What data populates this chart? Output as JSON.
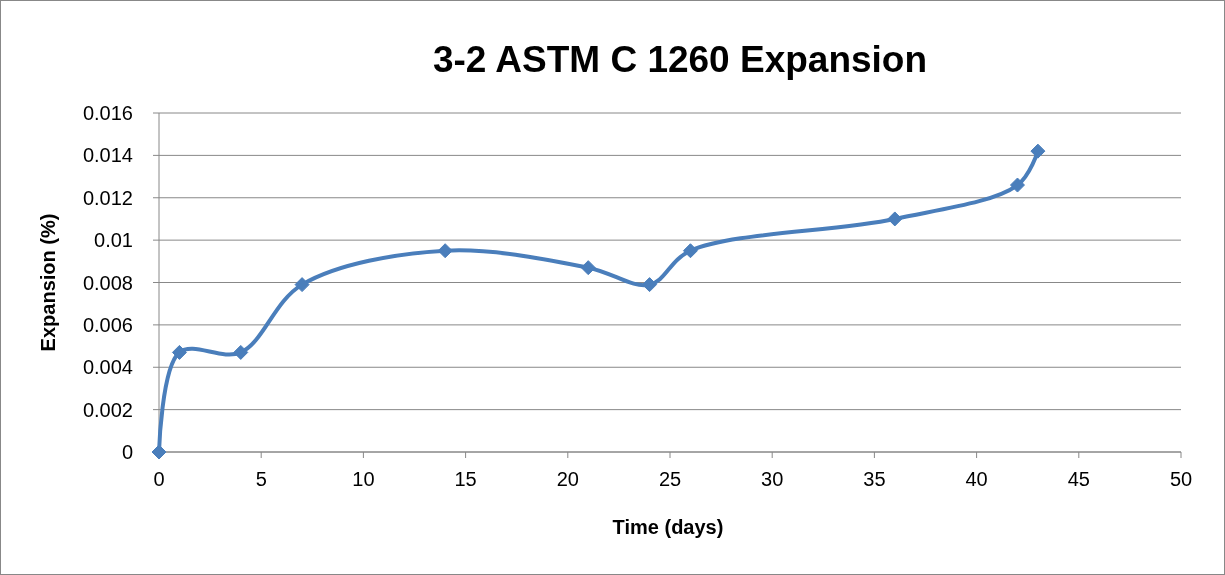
{
  "chart_data": {
    "type": "line",
    "title": "3-2 ASTM C 1260 Expansion",
    "xlabel": "Time (days)",
    "ylabel": "Expansion (%)",
    "x": [
      0,
      1,
      4,
      7,
      14,
      21,
      24,
      26,
      36,
      42,
      43
    ],
    "series": [
      {
        "color": "#4a7ebb",
        "values": [
          0,
          0.0047,
          0.0047,
          0.0079,
          0.0095,
          0.0087,
          0.0079,
          0.0095,
          0.011,
          0.0126,
          0.0142
        ]
      }
    ],
    "xlim": [
      0,
      50
    ],
    "xticks": [
      0,
      5,
      10,
      15,
      20,
      25,
      30,
      35,
      40,
      45,
      50
    ],
    "ylim": [
      0,
      0.016
    ],
    "yticks": [
      0,
      0.002,
      0.004,
      0.006,
      0.008,
      0.01,
      0.012,
      0.014,
      0.016
    ],
    "grid": "y",
    "marker": "diamond",
    "line_style": "solid"
  }
}
